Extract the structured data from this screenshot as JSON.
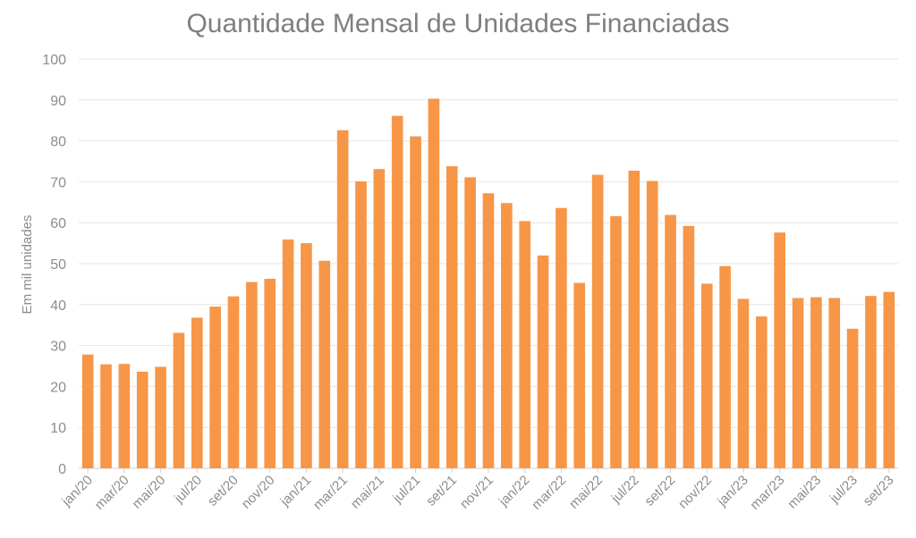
{
  "chart_data": {
    "type": "bar",
    "title": "Quantidade Mensal de Unidades Financiadas",
    "ylabel": "Em mil unidades",
    "xlabel": "",
    "ylim": [
      0,
      100
    ],
    "yticks": [
      0,
      10,
      20,
      30,
      40,
      50,
      60,
      70,
      80,
      90,
      100
    ],
    "grid": true,
    "bar_color": "#f79646",
    "categories": [
      "jan/20",
      "fev/20",
      "mar/20",
      "abr/20",
      "mai/20",
      "jun/20",
      "jul/20",
      "ago/20",
      "set/20",
      "out/20",
      "nov/20",
      "dez/20",
      "jan/21",
      "fev/21",
      "mar/21",
      "abr/21",
      "mai/21",
      "jun/21",
      "jul/21",
      "ago/21",
      "set/21",
      "out/21",
      "nov/21",
      "dez/21",
      "jan/22",
      "fev/22",
      "mar/22",
      "abr/22",
      "mai/22",
      "jun/22",
      "jul/22",
      "ago/22",
      "set/22",
      "out/22",
      "nov/22",
      "dez/22",
      "jan/23",
      "fev/23",
      "mar/23",
      "abr/23",
      "mai/23",
      "jun/23",
      "jul/23",
      "ago/23",
      "set/23"
    ],
    "visible_tick_labels": [
      "jan/20",
      "mar/20",
      "mai/20",
      "jul/20",
      "set/20",
      "nov/20",
      "jan/21",
      "mar/21",
      "mai/21",
      "jul/21",
      "set/21",
      "nov/21",
      "jan/22",
      "mar/22",
      "mai/22",
      "jul/22",
      "set/22",
      "nov/22",
      "jan/23",
      "mar/23",
      "mai/23",
      "jul/23",
      "set/23"
    ],
    "values": [
      27.8,
      25.4,
      25.5,
      23.6,
      24.8,
      33.1,
      36.8,
      39.5,
      42.0,
      45.5,
      46.3,
      55.9,
      55.0,
      50.7,
      82.6,
      70.1,
      73.1,
      86.1,
      81.1,
      90.3,
      73.8,
      71.1,
      67.2,
      64.8,
      60.4,
      52.0,
      63.6,
      45.3,
      71.7,
      61.6,
      72.7,
      70.2,
      61.9,
      59.2,
      45.1,
      49.4,
      41.4,
      37.1,
      57.6,
      41.6,
      41.8,
      41.6,
      34.1,
      42.1,
      43.1
    ]
  }
}
